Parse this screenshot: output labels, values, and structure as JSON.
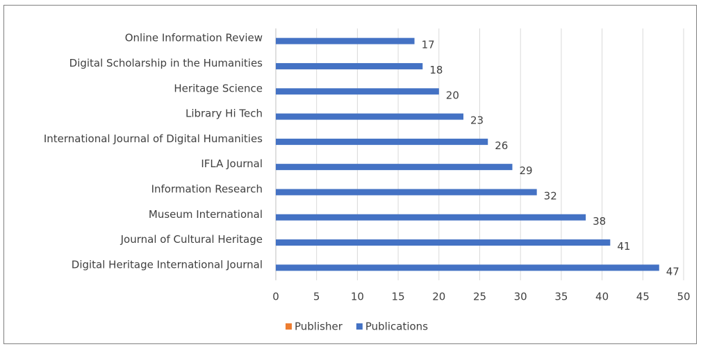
{
  "chart_data": {
    "type": "bar",
    "orientation": "horizontal",
    "categories": [
      "Online Information Review",
      "Digital Scholarship in the Humanities",
      "Heritage Science",
      "Library Hi Tech",
      "International Journal of Digital Humanities",
      "IFLA Journal",
      "Information Research",
      "Museum International",
      "Journal of Cultural Heritage",
      "Digital Heritage International Journal"
    ],
    "series": [
      {
        "name": "Publisher",
        "color": "#ed7d31",
        "values": [
          null,
          null,
          null,
          null,
          null,
          null,
          null,
          null,
          null,
          null
        ]
      },
      {
        "name": "Publications",
        "color": "#4472c4",
        "values": [
          17,
          18,
          20,
          23,
          26,
          29,
          32,
          38,
          41,
          47
        ]
      }
    ],
    "xlim": [
      0,
      50
    ],
    "xticks": [
      0,
      5,
      10,
      15,
      20,
      25,
      30,
      35,
      40,
      45,
      50
    ],
    "grid": true,
    "legend": "bottom"
  }
}
